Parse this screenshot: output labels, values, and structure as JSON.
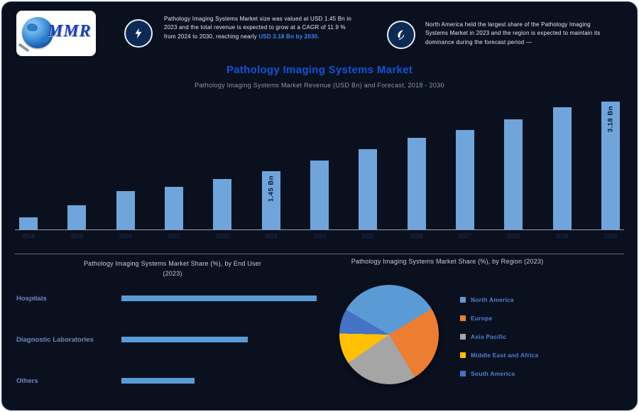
{
  "logo": {
    "text": "MMR"
  },
  "header": {
    "stat1": {
      "icon": "lightning",
      "text": "Pathology Imaging Systems Market size was valued at USD 1.45 Bn in 2023 and the total revenue is expected to grow at a CAGR of 11.9 % from 2024 to 2030, reaching nearly",
      "highlight": "USD 3.18 Bn by 2030."
    },
    "stat2": {
      "icon": "growth",
      "text": "North America held the largest share of the Pathology Imaging Systems Market in 2023 and the region is expected to maintain its dominance during the forecast period —"
    }
  },
  "accent_colors": {
    "title_blue": "#1453d6",
    "bar_blue": "#6fa5da",
    "panel_bg": "#0b101f"
  },
  "chart_data": [
    {
      "type": "bar",
      "title": "Pathology Imaging Systems Market",
      "subtitle": "Pathology Imaging Systems Market Revenue (USD Bn) and Forecast, 2018 - 2030",
      "x": [
        "2018",
        "2019",
        "2020",
        "2021",
        "2022",
        "2023",
        "2024",
        "2025",
        "2026",
        "2027",
        "2028",
        "2029",
        "2030"
      ],
      "values": [
        0.3,
        0.6,
        0.95,
        1.06,
        1.25,
        1.45,
        1.71,
        2.0,
        2.28,
        2.47,
        2.74,
        3.04,
        3.18
      ],
      "value_labels": {
        "2023": "1.45 Bn",
        "2030": "3.18 Bn"
      },
      "bar_color": "#6fa5da",
      "ylim": [
        0,
        3.18
      ],
      "ylabel": "",
      "grid": false
    },
    {
      "type": "bar",
      "orientation": "horizontal",
      "title_line1": "Pathology Imaging Systems Market Share (%), by End User",
      "title_line2": "(2023)",
      "categories": [
        "Hospitals",
        "Diagnostic Laboratories",
        "Others"
      ],
      "values": [
        48,
        31,
        18
      ],
      "unit": "%",
      "bar_color": "#5b9bd5",
      "grid": false
    },
    {
      "type": "pie",
      "title": "Pathology Imaging Systems Market Share (%), by Region (2023)",
      "labels": [
        "North America",
        "Europe",
        "Asia Pacific",
        "Middle East and Africa",
        "South America"
      ],
      "values": [
        33,
        25,
        24,
        10,
        8
      ],
      "colors": [
        "#5b9bd5",
        "#ed7d31",
        "#a5a5a5",
        "#ffc000",
        "#4472c4"
      ],
      "start_angle": -60,
      "legend_position": "right"
    }
  ]
}
